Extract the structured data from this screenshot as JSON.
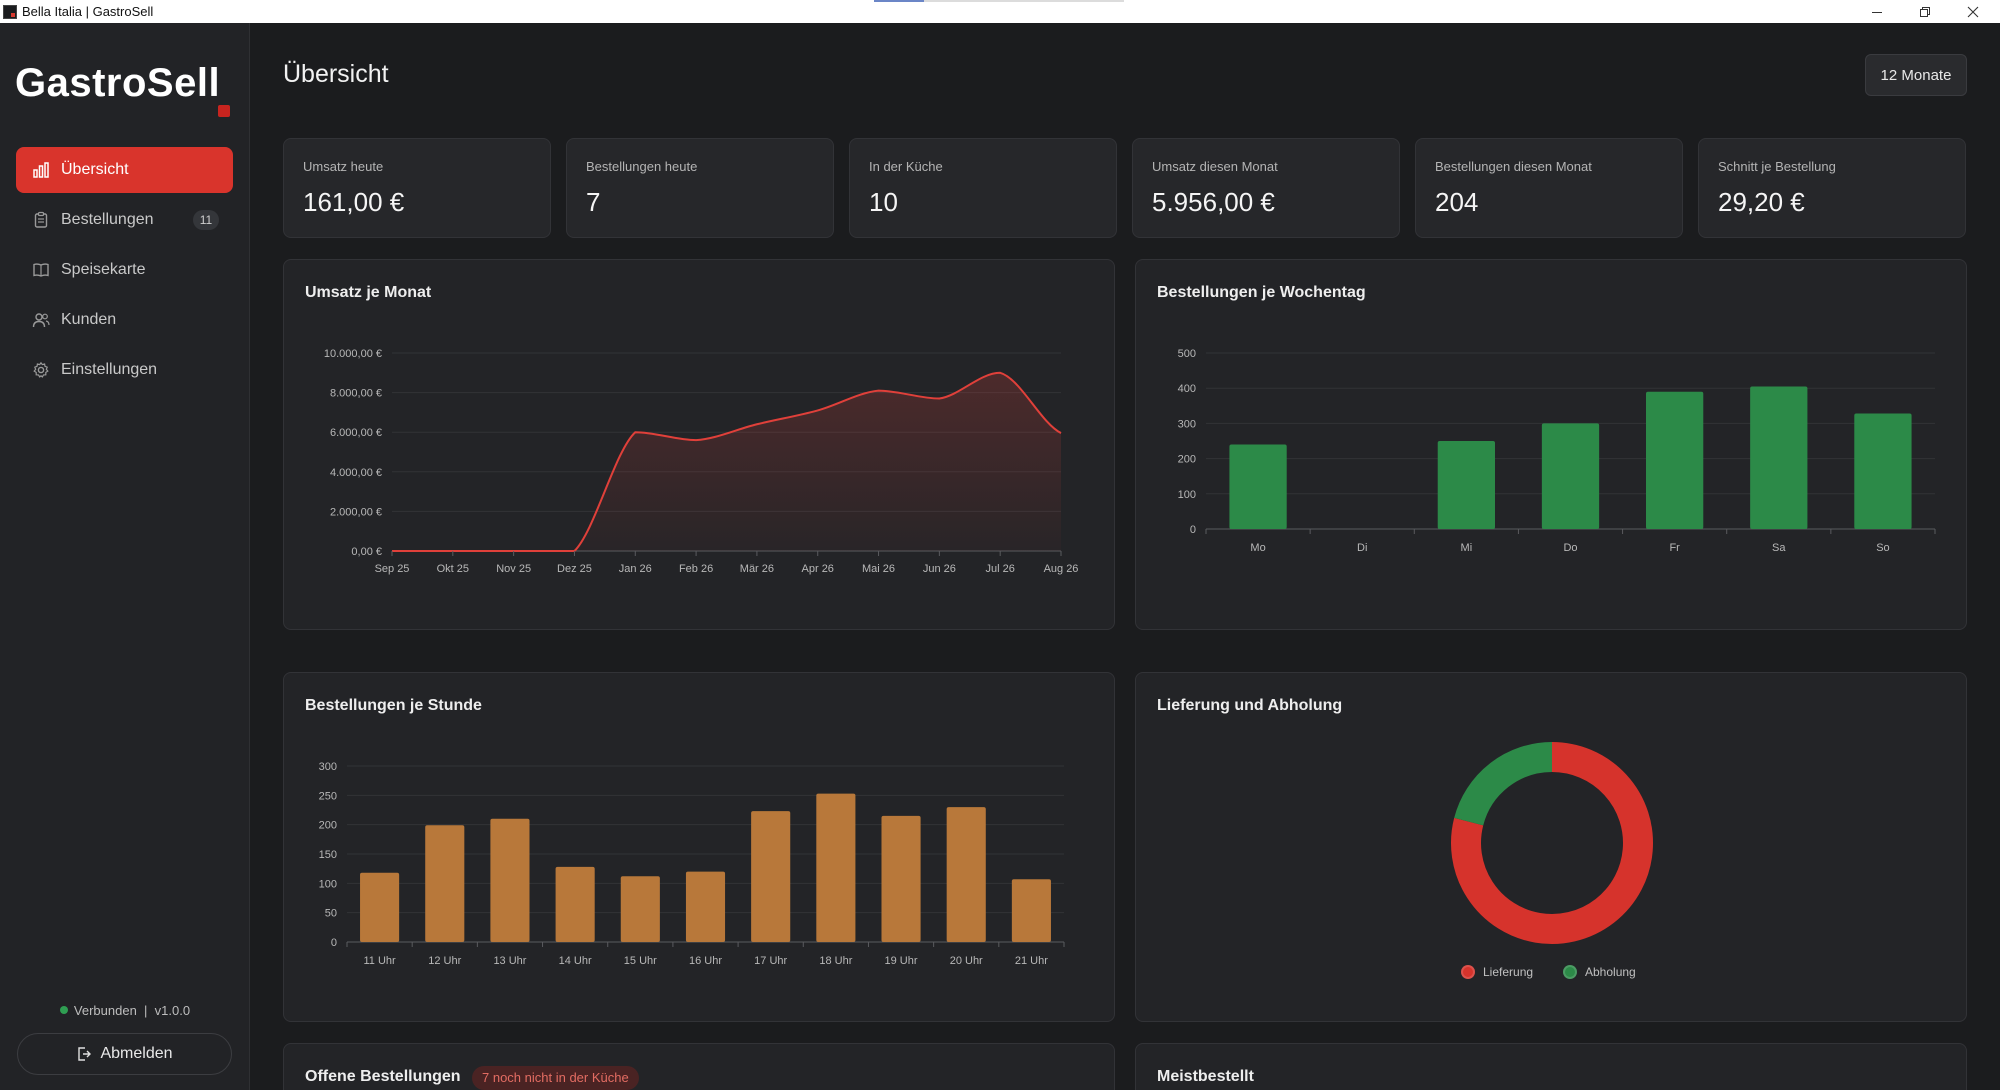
{
  "window": {
    "title": "Bella Italia | GastroSell",
    "loading_progress": 0.2
  },
  "sidebar": {
    "logo": "GastroSell",
    "items": [
      {
        "label": "Übersicht",
        "icon": "bar-chart-icon",
        "active": true
      },
      {
        "label": "Bestellungen",
        "icon": "clipboard-icon",
        "badge": "11"
      },
      {
        "label": "Speisekarte",
        "icon": "book-icon"
      },
      {
        "label": "Kunden",
        "icon": "users-icon"
      },
      {
        "label": "Einstellungen",
        "icon": "gear-icon"
      }
    ],
    "status": "Verbunden",
    "separator": "|",
    "version": "v1.0.0",
    "logout_label": "Abmelden"
  },
  "header": {
    "title": "Übersicht",
    "period": "12 Monate"
  },
  "stats": [
    {
      "label": "Umsatz heute",
      "value": "161,00 €"
    },
    {
      "label": "Bestellungen heute",
      "value": "7"
    },
    {
      "label": "In der Küche",
      "value": "10"
    },
    {
      "label": "Umsatz diesen Monat",
      "value": "5.956,00 €"
    },
    {
      "label": "Bestellungen diesen Monat",
      "value": "204"
    },
    {
      "label": "Schnitt je Bestellung",
      "value": "29,20 €"
    }
  ],
  "panels": {
    "revenue": "Umsatz je Monat",
    "weekday": "Bestellungen je Wochentag",
    "hourly": "Bestellungen je Stunde",
    "delivery": "Lieferung und Abholung",
    "open_orders": "Offene Bestellungen",
    "open_orders_pill": "7 noch nicht in der Küche",
    "top": "Meistbestellt"
  },
  "colors": {
    "accent": "#d9342c",
    "green": "#2c8a48",
    "orange": "#b8783a",
    "line": "#e0403a"
  },
  "chart_data": [
    {
      "type": "area",
      "title": "Umsatz je Monat",
      "categories": [
        "Sep 25",
        "Okt 25",
        "Nov 25",
        "Dez 25",
        "Jan 26",
        "Feb 26",
        "Mär 26",
        "Apr 26",
        "Mai 26",
        "Jun 26",
        "Jul 26",
        "Aug 26"
      ],
      "values": [
        0,
        0,
        0,
        0,
        6000,
        5600,
        6400,
        7100,
        8100,
        7700,
        9000,
        5956
      ],
      "yticks": [
        "0,00 €",
        "2.000,00 €",
        "4.000,00 €",
        "6.000,00 €",
        "8.000,00 €",
        "10.000,00 €"
      ],
      "ylim": [
        0,
        10000
      ]
    },
    {
      "type": "bar",
      "title": "Bestellungen je Wochentag",
      "categories": [
        "Mo",
        "Di",
        "Mi",
        "Do",
        "Fr",
        "Sa",
        "So"
      ],
      "values": [
        240,
        0,
        250,
        300,
        390,
        405,
        328
      ],
      "yticks": [
        "0",
        "100",
        "200",
        "300",
        "400",
        "500"
      ],
      "ylim": [
        0,
        500
      ]
    },
    {
      "type": "bar",
      "title": "Bestellungen je Stunde",
      "categories": [
        "11 Uhr",
        "12 Uhr",
        "13 Uhr",
        "14 Uhr",
        "15 Uhr",
        "16 Uhr",
        "17 Uhr",
        "18 Uhr",
        "19 Uhr",
        "20 Uhr",
        "21 Uhr"
      ],
      "values": [
        118,
        199,
        210,
        128,
        112,
        120,
        223,
        253,
        215,
        230,
        107
      ],
      "yticks": [
        "0",
        "50",
        "100",
        "150",
        "200",
        "250",
        "300"
      ],
      "ylim": [
        0,
        300
      ]
    },
    {
      "type": "pie",
      "title": "Lieferung und Abholung",
      "categories": [
        "Lieferung",
        "Abholung"
      ],
      "values": [
        79,
        21
      ],
      "colors": [
        "#d6332c",
        "#2c8a48"
      ]
    }
  ]
}
